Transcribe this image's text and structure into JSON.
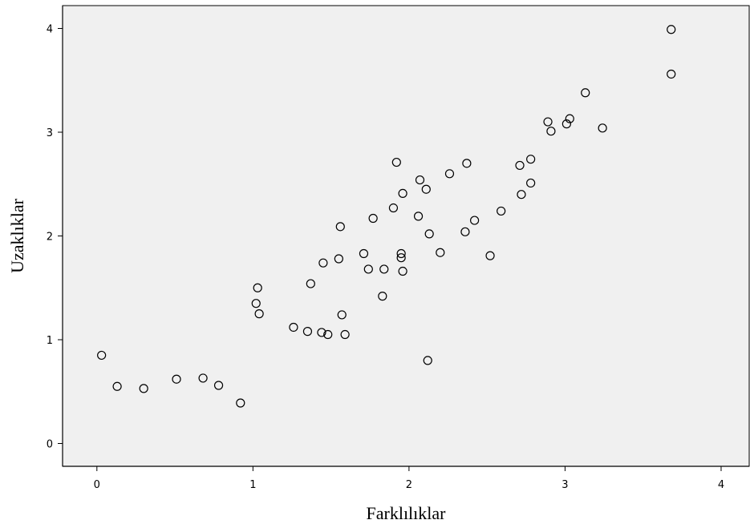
{
  "chart_data": {
    "type": "scatter",
    "xlabel": "Farklılıklar",
    "ylabel": "Uzaklıklar",
    "xlim": [
      -0.22,
      4.18
    ],
    "ylim": [
      -0.22,
      4.22
    ],
    "xticks": [
      0,
      1,
      2,
      3,
      4
    ],
    "yticks": [
      0,
      1,
      2,
      3,
      4
    ],
    "grid": false,
    "colors": {
      "plot_bg": "#f0f0f0",
      "marker_stroke": "#000000",
      "axis": "#000000"
    },
    "series": [
      {
        "marker": "circle-open",
        "points": [
          [
            0.03,
            0.85
          ],
          [
            0.13,
            0.55
          ],
          [
            0.3,
            0.53
          ],
          [
            0.51,
            0.62
          ],
          [
            0.68,
            0.63
          ],
          [
            0.78,
            0.56
          ],
          [
            0.92,
            0.39
          ],
          [
            1.03,
            1.5
          ],
          [
            1.02,
            1.35
          ],
          [
            1.04,
            1.25
          ],
          [
            1.26,
            1.12
          ],
          [
            1.35,
            1.08
          ],
          [
            1.37,
            1.54
          ],
          [
            1.45,
            1.74
          ],
          [
            1.44,
            1.07
          ],
          [
            1.48,
            1.05
          ],
          [
            1.55,
            1.78
          ],
          [
            1.56,
            2.09
          ],
          [
            1.57,
            1.24
          ],
          [
            1.59,
            1.05
          ],
          [
            1.71,
            1.83
          ],
          [
            1.74,
            1.68
          ],
          [
            1.77,
            2.17
          ],
          [
            1.83,
            1.42
          ],
          [
            1.84,
            1.68
          ],
          [
            1.9,
            2.27
          ],
          [
            1.92,
            2.71
          ],
          [
            1.95,
            1.83
          ],
          [
            1.95,
            1.79
          ],
          [
            1.96,
            2.41
          ],
          [
            1.96,
            1.66
          ],
          [
            2.06,
            2.19
          ],
          [
            2.07,
            2.54
          ],
          [
            2.11,
            2.45
          ],
          [
            2.12,
            0.8
          ],
          [
            2.13,
            2.02
          ],
          [
            2.2,
            1.84
          ],
          [
            2.26,
            2.6
          ],
          [
            2.36,
            2.04
          ],
          [
            2.37,
            2.7
          ],
          [
            2.42,
            2.15
          ],
          [
            2.52,
            1.81
          ],
          [
            2.59,
            2.24
          ],
          [
            2.71,
            2.68
          ],
          [
            2.72,
            2.4
          ],
          [
            2.78,
            2.51
          ],
          [
            2.78,
            2.74
          ],
          [
            2.89,
            3.1
          ],
          [
            2.91,
            3.01
          ],
          [
            3.01,
            3.08
          ],
          [
            3.03,
            3.13
          ],
          [
            3.13,
            3.38
          ],
          [
            3.24,
            3.04
          ],
          [
            3.68,
            3.99
          ],
          [
            3.68,
            3.56
          ]
        ]
      }
    ]
  }
}
